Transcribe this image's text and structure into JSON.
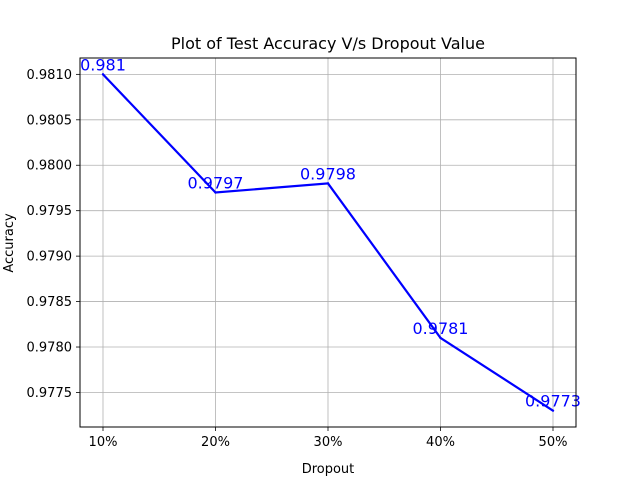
{
  "chart_data": {
    "type": "line",
    "title": "Plot of Test Accuracy V/s Dropout Value",
    "xlabel": "Dropout",
    "ylabel": "Accuracy",
    "categories": [
      "10%",
      "20%",
      "30%",
      "40%",
      "50%"
    ],
    "series": [
      {
        "values": [
          0.981,
          0.9797,
          0.9798,
          0.9781,
          0.9773
        ],
        "color": "#0000ff"
      }
    ],
    "data_labels": [
      "0.981",
      "0.9797",
      "0.9798",
      "0.9781",
      "0.9773"
    ],
    "ylim": [
      0.97712,
      0.98118
    ],
    "yticks": [
      0.9775,
      0.978,
      0.9785,
      0.979,
      0.9795,
      0.98,
      0.9805,
      0.981
    ],
    "ytick_labels": [
      "0.9775",
      "0.9780",
      "0.9785",
      "0.9790",
      "0.9795",
      "0.9800",
      "0.9805",
      "0.9810"
    ],
    "grid": true,
    "colors": {
      "line": "#0000ff",
      "grid": "#b0b0b0",
      "axes": "#000000"
    }
  }
}
